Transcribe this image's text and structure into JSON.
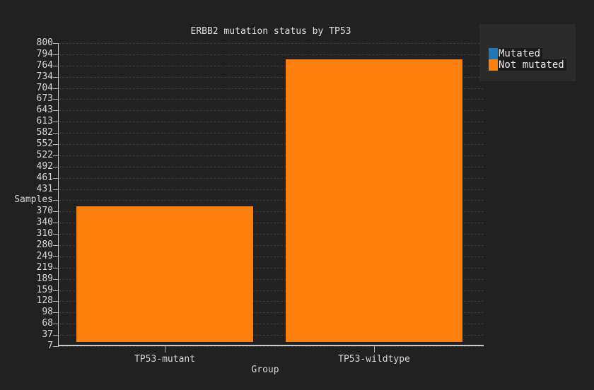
{
  "window": {
    "kind": "chart-figure"
  },
  "colors": {
    "background": "#212121",
    "plot_background": "#212121",
    "grid": "#3c3c3c",
    "axis": "#c8c8c8",
    "text": "#d8d8d8",
    "legend_background": "#2b2b2b",
    "legend_label_background": "#1b1b1b",
    "mutated_blue": "#1f77b4",
    "not_mutated_orange": "#ff7f0e"
  },
  "chart_data": {
    "type": "bar",
    "title": "ERBB2 mutation status by TP53",
    "xlabel": "Group",
    "ylabel": "Samples",
    "categories": [
      "TP53-mutant",
      "TP53-wildtype"
    ],
    "series": [
      {
        "name": "Mutated",
        "color": "#1f77b4",
        "values": [
          0,
          0
        ],
        "visible_in_plot": false
      },
      {
        "name": "Not mutated",
        "color": "#ff7f0e",
        "values": [
          384,
          780
        ],
        "visible_in_plot": true
      }
    ],
    "bar_base_value": 19,
    "y_axis": {
      "min": 7,
      "max": 800,
      "tick_labels_top_to_bottom": [
        "800",
        "794",
        "764",
        "734",
        "704",
        "673",
        "643",
        "613",
        "582",
        "552",
        "522",
        "492",
        "461",
        "431",
        "Samples",
        "370",
        "340",
        "310",
        "280",
        "249",
        "219",
        "189",
        "159",
        "128",
        "98",
        "68",
        "37",
        "7"
      ],
      "ylabel_replaces_tick": "401"
    },
    "grid": "horizontal-dashed",
    "legend": {
      "position": "top-right",
      "entries": [
        {
          "label": "Mutated",
          "color": "#1f77b4"
        },
        {
          "label": "Not mutated",
          "color": "#ff7f0e"
        }
      ]
    }
  }
}
